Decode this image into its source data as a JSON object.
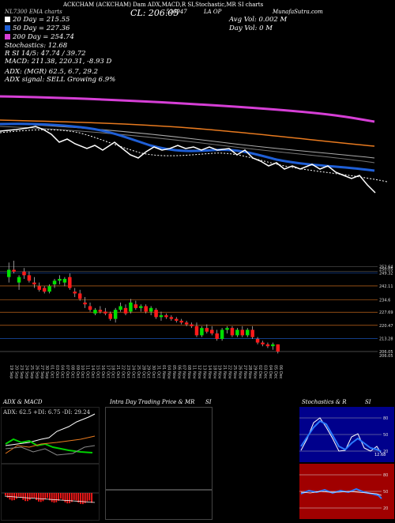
{
  "header": {
    "symbol_line": "ACKCHAM (ACKCHAM) Dam ADX,MACD,R SI,Stochastic,MR SI charts",
    "left_tag": "NL7300 EMA charts",
    "cl_label": "CL: 206.05",
    "code": "526947",
    "exchange": "LA OP",
    "site": "MunafaSutra.com",
    "avg_vol": "Avg Vol: 0.002  M",
    "day_vol": "Day Vol: 0    M"
  },
  "legend": [
    {
      "label": "20  Day = 215.55",
      "color": "#ffffff"
    },
    {
      "label": "50  Day = 227.36",
      "color": "#1f5fd6"
    },
    {
      "label": "200  Day = 254.74",
      "color": "#d63fd6"
    }
  ],
  "indicators": {
    "stochastics": "Stochastics: 12.68",
    "rsi": "R          SI 14/5: 47.74  / 39.72",
    "macd": "MACD: 211.38,  220.31,  -8.93 D",
    "adx": "ADX:               (MGR) 62.5,  6.7,  29.2",
    "adx_signal": "ADX  signal: SELL Growing 6.9%"
  },
  "price_ticks": [
    "252.64",
    "250.05",
    "249.32",
    "242.11",
    "234.6",
    "227.69",
    "220.47",
    "213.28",
    "206.05",
    "206.05"
  ],
  "date_ticks": [
    "19 Sep",
    "20 Sep",
    "23 Sep",
    "24 Sep",
    "25 Sep",
    "26 Sep",
    "27 Sep",
    "30 Sep",
    "01 Oct",
    "03 Oct",
    "04 Oct",
    "07 Oct",
    "08 Oct",
    "09 Oct",
    "10 Oct",
    "11 Oct",
    "14 Oct",
    "15 Oct",
    "16 Oct",
    "17 Oct",
    "18 Oct",
    "21 Oct",
    "22 Oct",
    "23 Oct",
    "24 Oct",
    "25 Oct",
    "28 Oct",
    "29 Oct",
    "30 Oct",
    "31 Oct",
    "01 Nov",
    "04 Nov",
    "05 Nov",
    "06 Nov",
    "07 Nov",
    "08 Nov",
    "11 Nov",
    "12 Nov",
    "13 Nov",
    "14 Nov",
    "18 Nov",
    "19 Nov",
    "21 Nov",
    "22 Nov",
    "25 Nov",
    "26 Nov",
    "27 Nov",
    "28 Nov",
    "29 Nov",
    "02 Dec",
    "03 Dec",
    "04 Dec",
    "05 Dec",
    "06 Dec"
  ],
  "adx_panel": {
    "title": "ADX  & MACD",
    "readout": "ADX: 62.5  +DI: 6.75  -DI: 29.24"
  },
  "intraday_panel": {
    "title": "Intra Day Trading Price  & MR",
    "title_right": "SI"
  },
  "stoch_panel": {
    "title": "Stochastics & R",
    "title_right": "SI",
    "ticks_top": [
      "80",
      "50",
      "20"
    ],
    "last_value": "12.68",
    "ticks_bottom": [
      "80",
      "50",
      "20"
    ]
  },
  "colors": {
    "ma20": "#ffffff",
    "ma50": "#1f5fd6",
    "ma200": "#d63fd6",
    "ema": "#e87a1f",
    "up": "#00e000",
    "down": "#ff1a1a",
    "rsi_bg": "#a00000"
  },
  "chart_data": {
    "type": "candlestick",
    "candles": [
      {
        "o": 247,
        "h": 255,
        "l": 244,
        "c": 251
      },
      {
        "o": 251,
        "h": 256,
        "l": 249,
        "c": 250
      },
      {
        "o": 244,
        "h": 248,
        "l": 240,
        "c": 247
      },
      {
        "o": 250,
        "h": 252,
        "l": 246,
        "c": 248
      },
      {
        "o": 248,
        "h": 250,
        "l": 244,
        "c": 245
      },
      {
        "o": 244,
        "h": 247,
        "l": 241,
        "c": 243
      },
      {
        "o": 242,
        "h": 244,
        "l": 239,
        "c": 240
      },
      {
        "o": 241,
        "h": 242,
        "l": 238,
        "c": 239
      },
      {
        "o": 239,
        "h": 243,
        "l": 238,
        "c": 242
      },
      {
        "o": 243,
        "h": 246,
        "l": 241,
        "c": 245
      },
      {
        "o": 245,
        "h": 248,
        "l": 243,
        "c": 246
      },
      {
        "o": 244,
        "h": 247,
        "l": 242,
        "c": 246
      },
      {
        "o": 247,
        "h": 249,
        "l": 240,
        "c": 241
      },
      {
        "o": 239,
        "h": 241,
        "l": 236,
        "c": 238
      },
      {
        "o": 238,
        "h": 240,
        "l": 234,
        "c": 235
      },
      {
        "o": 233,
        "h": 236,
        "l": 230,
        "c": 232
      },
      {
        "o": 231,
        "h": 233,
        "l": 228,
        "c": 229
      },
      {
        "o": 227,
        "h": 230,
        "l": 226,
        "c": 229
      },
      {
        "o": 229,
        "h": 231,
        "l": 227,
        "c": 228
      },
      {
        "o": 228,
        "h": 230,
        "l": 226,
        "c": 227
      },
      {
        "o": 227,
        "h": 228,
        "l": 223,
        "c": 224
      },
      {
        "o": 224,
        "h": 230,
        "l": 222,
        "c": 229
      },
      {
        "o": 229,
        "h": 233,
        "l": 228,
        "c": 231
      },
      {
        "o": 230,
        "h": 232,
        "l": 226,
        "c": 227
      },
      {
        "o": 228,
        "h": 235,
        "l": 227,
        "c": 233
      },
      {
        "o": 232,
        "h": 234,
        "l": 229,
        "c": 230
      },
      {
        "o": 230,
        "h": 232,
        "l": 228,
        "c": 231
      },
      {
        "o": 231,
        "h": 232,
        "l": 227,
        "c": 228
      },
      {
        "o": 228,
        "h": 231,
        "l": 226,
        "c": 230
      },
      {
        "o": 229,
        "h": 230,
        "l": 224,
        "c": 225
      },
      {
        "o": 225,
        "h": 228,
        "l": 223,
        "c": 226
      },
      {
        "o": 226,
        "h": 227,
        "l": 224,
        "c": 225
      },
      {
        "o": 225,
        "h": 226,
        "l": 223,
        "c": 224
      },
      {
        "o": 224,
        "h": 225,
        "l": 222,
        "c": 223
      },
      {
        "o": 223,
        "h": 224,
        "l": 221,
        "c": 222
      },
      {
        "o": 222,
        "h": 223,
        "l": 220,
        "c": 221
      },
      {
        "o": 221,
        "h": 222,
        "l": 219,
        "c": 220
      },
      {
        "o": 220,
        "h": 222,
        "l": 214,
        "c": 215
      },
      {
        "o": 215,
        "h": 220,
        "l": 214,
        "c": 219
      },
      {
        "o": 219,
        "h": 221,
        "l": 216,
        "c": 217
      },
      {
        "o": 218,
        "h": 220,
        "l": 215,
        "c": 216
      },
      {
        "o": 216,
        "h": 218,
        "l": 212,
        "c": 213
      },
      {
        "o": 213,
        "h": 219,
        "l": 212,
        "c": 218
      },
      {
        "o": 218,
        "h": 220,
        "l": 216,
        "c": 219
      },
      {
        "o": 219,
        "h": 220,
        "l": 214,
        "c": 215
      },
      {
        "o": 215,
        "h": 219,
        "l": 214,
        "c": 218
      },
      {
        "o": 218,
        "h": 220,
        "l": 214,
        "c": 215
      },
      {
        "o": 215,
        "h": 219,
        "l": 214,
        "c": 218
      },
      {
        "o": 218,
        "h": 220,
        "l": 213,
        "c": 214
      },
      {
        "o": 213,
        "h": 214,
        "l": 210,
        "c": 211
      },
      {
        "o": 211,
        "h": 212,
        "l": 209,
        "c": 210
      },
      {
        "o": 210,
        "h": 211,
        "l": 208,
        "c": 209
      },
      {
        "o": 209,
        "h": 211,
        "l": 207,
        "c": 210
      },
      {
        "o": 210,
        "h": 210,
        "l": 205,
        "c": 206.05
      }
    ]
  }
}
